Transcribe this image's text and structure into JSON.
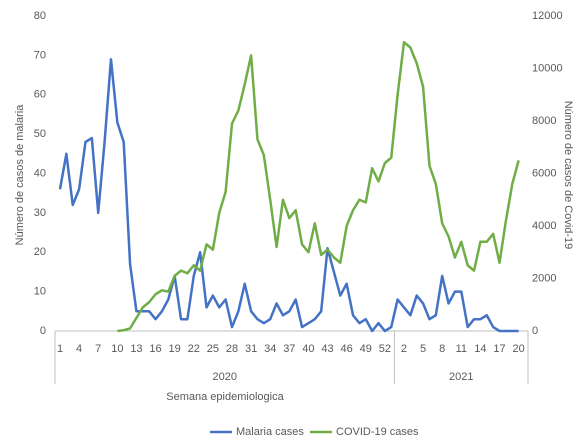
{
  "chart_data": {
    "type": "line",
    "x_label": "Semana epidemiologica",
    "y_label": "Número de casos de malaria",
    "y2_label": "Número de casos de Covid-19",
    "years": [
      "2020",
      "2021"
    ],
    "categories": [
      "1",
      null,
      null,
      "4",
      null,
      null,
      "7",
      null,
      null,
      "10",
      null,
      null,
      "13",
      null,
      null,
      "16",
      null,
      null,
      "19",
      null,
      null,
      "22",
      null,
      null,
      "25",
      null,
      null,
      "28",
      null,
      null,
      "31",
      null,
      null,
      "34",
      null,
      null,
      "37",
      null,
      null,
      "40",
      null,
      null,
      "43",
      null,
      null,
      "46",
      null,
      null,
      "49",
      null,
      null,
      "52",
      null,
      null,
      "2",
      null,
      null,
      "5",
      null,
      null,
      "8",
      null,
      null,
      "11",
      null,
      null,
      "14",
      null,
      null,
      "17",
      null,
      null,
      "20"
    ],
    "series": [
      {
        "name": "Malaria cases",
        "color": "#4472c4",
        "values": [
          36,
          45,
          32,
          36,
          48,
          49,
          30,
          48,
          69,
          53,
          48,
          17,
          5,
          5,
          5,
          3,
          5,
          8,
          14,
          3,
          3,
          14,
          20,
          6,
          9,
          6,
          8,
          1,
          5,
          12,
          5,
          3,
          2,
          3,
          7,
          4,
          5,
          8,
          1,
          2,
          3,
          5,
          21,
          15,
          9,
          12,
          4,
          2,
          3,
          0,
          2,
          0,
          1,
          8,
          6,
          4,
          9,
          7,
          3,
          4,
          14,
          7,
          10,
          10,
          1,
          3,
          3,
          4,
          1,
          0,
          0,
          0,
          0
        ]
      },
      {
        "name": "COVID-19 cases",
        "color": "#70ad47",
        "axis": "y2",
        "values": [
          null,
          null,
          null,
          null,
          null,
          null,
          null,
          null,
          null,
          0,
          30,
          100,
          500,
          900,
          1100,
          1400,
          1550,
          1500,
          2100,
          2300,
          2200,
          2500,
          2300,
          3300,
          3100,
          4500,
          5300,
          7900,
          8400,
          9400,
          10500,
          7300,
          6700,
          5000,
          3200,
          5000,
          4300,
          4600,
          3300,
          3000,
          4100,
          2900,
          3100,
          2800,
          2600,
          4000,
          4600,
          5000,
          4900,
          6200,
          5700,
          6400,
          6600,
          9000,
          11000,
          10800,
          10200,
          9300,
          6300,
          5600,
          4100,
          3600,
          2800,
          3400,
          2500,
          2300,
          3400,
          3400,
          3700,
          2600,
          4200,
          5600,
          6500
        ]
      }
    ],
    "ylim": [
      0,
      80
    ],
    "yticks": [
      0,
      10,
      20,
      30,
      40,
      50,
      60,
      70,
      80
    ],
    "y2lim": [
      0,
      12000
    ],
    "y2ticks": [
      0,
      2000,
      4000,
      6000,
      8000,
      10000,
      12000
    ],
    "grid": false,
    "legend": "bottom"
  }
}
